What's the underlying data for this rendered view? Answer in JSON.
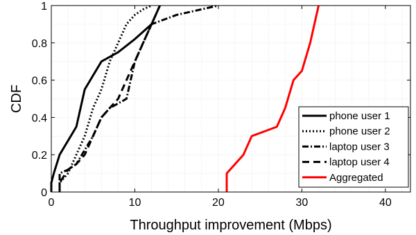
{
  "chart_data": {
    "type": "line",
    "title": "",
    "xlabel": "Throughput improvement (Mbps)",
    "ylabel": "CDF",
    "xlim": [
      0,
      43
    ],
    "ylim": [
      0,
      1
    ],
    "xticks": [
      0,
      10,
      20,
      30,
      40
    ],
    "yticks": [
      0,
      0.2,
      0.4,
      0.6,
      0.8,
      1
    ],
    "xtick_labels": [
      "0",
      "10",
      "20",
      "30",
      "40"
    ],
    "ytick_labels": [
      "0",
      "0.2",
      "0.4",
      "0.6",
      "0.8",
      "1"
    ],
    "grid": true,
    "legend_position": "bottom-right",
    "series": [
      {
        "name": "phone user 1",
        "color": "#000000",
        "style": "solid",
        "x": [
          0,
          0,
          0.3,
          1,
          3,
          4,
          6,
          8,
          10,
          12,
          12.5,
          13
        ],
        "y": [
          0,
          0.05,
          0.1,
          0.2,
          0.35,
          0.55,
          0.7,
          0.75,
          0.82,
          0.9,
          0.95,
          1
        ]
      },
      {
        "name": "phone user 2",
        "color": "#000000",
        "style": "dotted",
        "x": [
          1,
          1,
          2,
          3,
          4,
          5,
          6,
          7,
          8,
          9,
          10,
          11,
          12
        ],
        "y": [
          0,
          0.05,
          0.1,
          0.2,
          0.3,
          0.45,
          0.55,
          0.7,
          0.8,
          0.9,
          0.95,
          0.98,
          1
        ]
      },
      {
        "name": "laptop user 3",
        "color": "#000000",
        "style": "dashdot",
        "x": [
          1,
          1,
          2,
          3,
          5,
          6,
          7,
          9,
          10,
          11,
          12,
          15,
          20
        ],
        "y": [
          0,
          0.1,
          0.12,
          0.15,
          0.3,
          0.4,
          0.45,
          0.5,
          0.7,
          0.8,
          0.9,
          0.95,
          1
        ]
      },
      {
        "name": "laptop user 4",
        "color": "#000000",
        "style": "dashed",
        "x": [
          1,
          1,
          2,
          3,
          4,
          5,
          6,
          7,
          8,
          9,
          10,
          11,
          12,
          13
        ],
        "y": [
          0,
          0.05,
          0.12,
          0.15,
          0.2,
          0.3,
          0.4,
          0.45,
          0.5,
          0.6,
          0.7,
          0.8,
          0.9,
          1
        ]
      },
      {
        "name": "Aggregated",
        "color": "#ff0000",
        "style": "solid",
        "x": [
          21,
          21,
          23,
          24,
          27,
          28,
          29,
          30,
          31,
          32
        ],
        "y": [
          0,
          0.1,
          0.2,
          0.3,
          0.35,
          0.45,
          0.6,
          0.65,
          0.8,
          1
        ]
      }
    ]
  }
}
